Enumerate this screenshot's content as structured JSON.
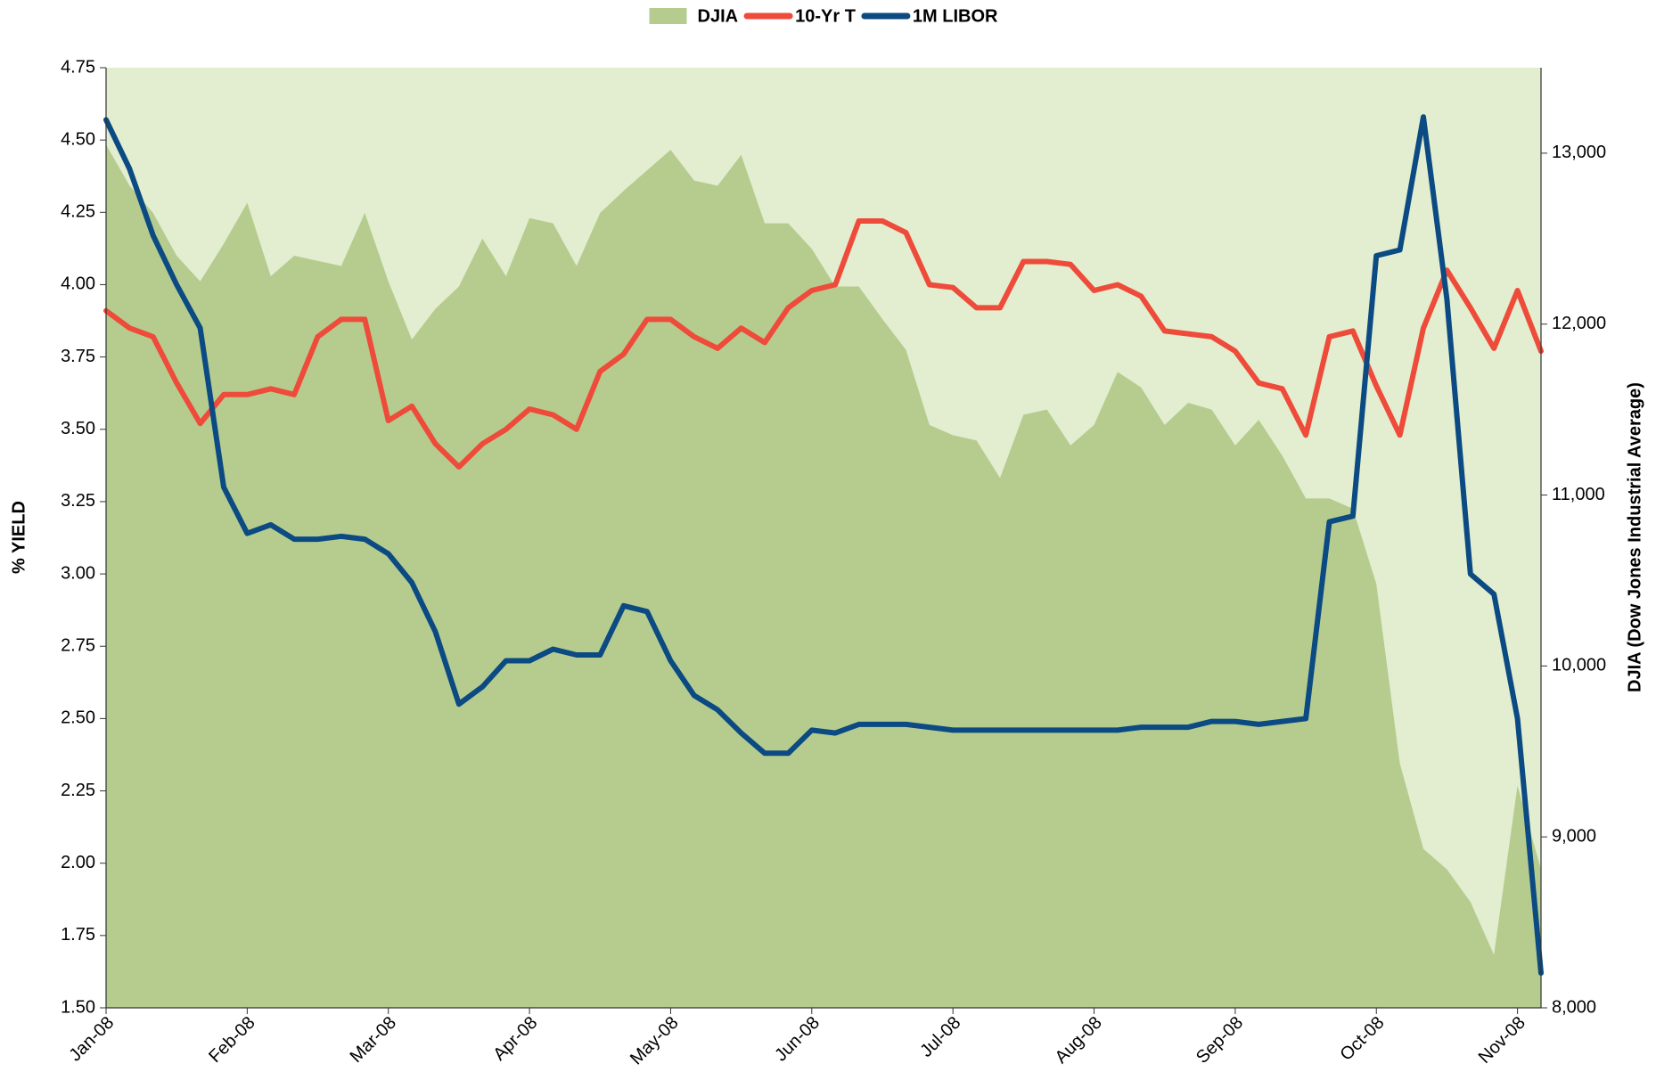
{
  "chart_data": {
    "type": "line",
    "y_label": "% YIELD",
    "y2_label": "DJIA (Dow Jones Industrial Average)",
    "categories": [
      "Jan-08",
      null,
      null,
      null,
      null,
      null,
      "Feb-08",
      null,
      null,
      null,
      null,
      null,
      "Mar-08",
      null,
      null,
      null,
      null,
      null,
      "Apr-08",
      null,
      null,
      null,
      null,
      null,
      "May-08",
      null,
      null,
      null,
      null,
      null,
      "Jun-08",
      null,
      null,
      null,
      null,
      null,
      "Jul-08",
      null,
      null,
      null,
      null,
      null,
      "Aug-08",
      null,
      null,
      null,
      null,
      null,
      "Sep-08",
      null,
      null,
      null,
      null,
      null,
      "Oct-08",
      null,
      null,
      null,
      null,
      null,
      "Nov-08",
      null
    ],
    "series": [
      {
        "name": "DJIA",
        "color": "#b6cc8f",
        "style": "area",
        "axis": "y2",
        "values": [
          13050,
          12810,
          12650,
          12400,
          12250,
          12470,
          12710,
          12280,
          12400,
          12370,
          12340,
          12650,
          12250,
          11910,
          12090,
          12220,
          12500,
          12280,
          12620,
          12590,
          12340,
          12650,
          12780,
          12900,
          13020,
          12840,
          12810,
          12990,
          12590,
          12590,
          12440,
          12220,
          12220,
          12030,
          11850,
          11410,
          11350,
          11320,
          11100,
          11470,
          11500,
          11290,
          11410,
          11720,
          11630,
          11410,
          11540,
          11500,
          11290,
          11440,
          11230,
          10980,
          10980,
          10920,
          10480,
          9430,
          8930,
          8810,
          8620,
          8310,
          9300,
          8810
        ]
      },
      {
        "name": "10-Yr T",
        "color": "#ee4b3a",
        "style": "line",
        "values": [
          3.91,
          3.85,
          3.82,
          3.66,
          3.52,
          3.62,
          3.62,
          3.64,
          3.62,
          3.82,
          3.88,
          3.88,
          3.53,
          3.58,
          3.45,
          3.37,
          3.45,
          3.5,
          3.57,
          3.55,
          3.5,
          3.7,
          3.76,
          3.88,
          3.88,
          3.82,
          3.78,
          3.85,
          3.8,
          3.92,
          3.98,
          4.0,
          4.22,
          4.22,
          4.18,
          4.0,
          3.99,
          3.92,
          3.92,
          4.08,
          4.08,
          4.07,
          3.98,
          4.0,
          3.96,
          3.84,
          3.83,
          3.82,
          3.77,
          3.66,
          3.64,
          3.48,
          3.82,
          3.84,
          3.65,
          3.48,
          3.85,
          4.05,
          3.92,
          3.78,
          3.98,
          3.77
        ]
      },
      {
        "name": "1M LIBOR",
        "color": "#0b4a82",
        "style": "line",
        "values": [
          4.57,
          4.4,
          4.17,
          4.0,
          3.85,
          3.3,
          3.14,
          3.17,
          3.12,
          3.12,
          3.13,
          3.12,
          3.07,
          2.97,
          2.8,
          2.55,
          2.61,
          2.7,
          2.7,
          2.74,
          2.72,
          2.72,
          2.89,
          2.87,
          2.7,
          2.58,
          2.53,
          2.45,
          2.38,
          2.38,
          2.46,
          2.45,
          2.48,
          2.48,
          2.48,
          2.47,
          2.46,
          2.46,
          2.46,
          2.46,
          2.46,
          2.46,
          2.46,
          2.46,
          2.47,
          2.47,
          2.47,
          2.49,
          2.49,
          2.48,
          2.49,
          2.5,
          3.18,
          3.2,
          4.1,
          4.12,
          4.58,
          3.95,
          3.0,
          2.93,
          2.5,
          1.62
        ]
      }
    ],
    "ylim": [
      1.5,
      4.75
    ],
    "yticks": [
      {
        "value": 1.5,
        "label": "1.50"
      },
      1.75,
      {
        "value": 2,
        "label": "2.00"
      },
      2.25,
      {
        "value": 2.5,
        "label": "2.50"
      },
      2.75,
      {
        "value": 3,
        "label": "3.00"
      },
      3.25,
      {
        "value": 3.5,
        "label": "3.50"
      },
      3.75,
      {
        "value": 4,
        "label": "4.00"
      },
      4.25,
      {
        "value": 4.5,
        "label": "4.50"
      },
      4.75
    ],
    "y2lim": [
      8000,
      13500
    ],
    "y2ticks": [
      {
        "value": 8000,
        "label": "8,000"
      },
      {
        "value": 9000,
        "label": "9,000"
      },
      {
        "value": 10000,
        "label": "10,000"
      },
      {
        "value": 11000,
        "label": "11,000"
      },
      {
        "value": 12000,
        "label": "12,000"
      },
      {
        "value": 13000,
        "label": "13,000"
      }
    ],
    "plot_background": "#e2eecf",
    "legend": "top"
  }
}
